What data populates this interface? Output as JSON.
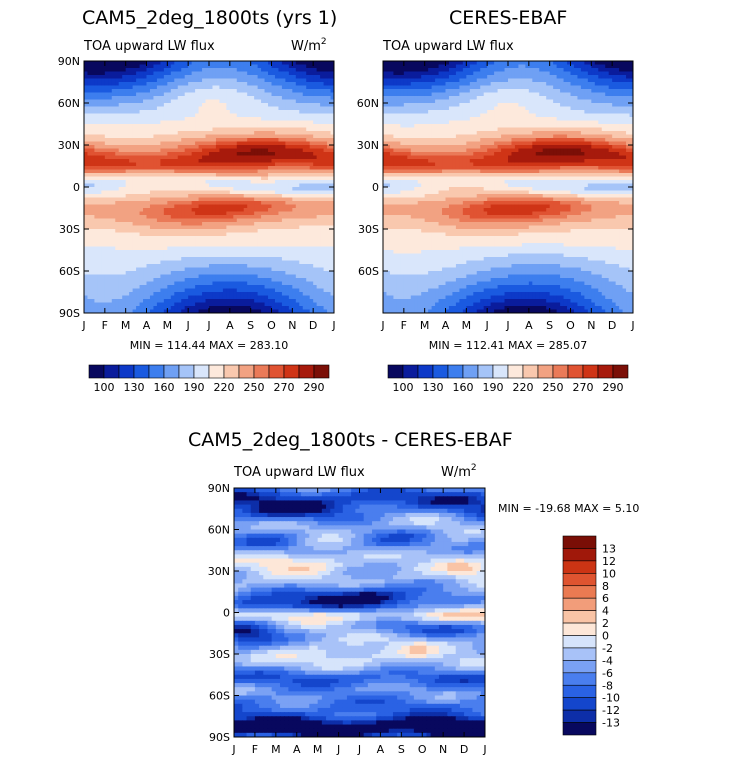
{
  "chart_data": [
    {
      "type": "heatmap",
      "title": "CAM5_2deg_1800ts (yrs 1)",
      "subtitle": "TOA upward LW flux",
      "units": "W/m",
      "units_sup": "2",
      "stats": "MIN = 114.44 MAX = 283.10",
      "x_ticks": [
        "J",
        "F",
        "M",
        "A",
        "M",
        "J",
        "J",
        "A",
        "S",
        "O",
        "N",
        "D",
        "J"
      ],
      "y_ticks": [
        "90N",
        "60N",
        "30N",
        "0",
        "30S",
        "60S",
        "90S"
      ],
      "ylim": [
        -90,
        90
      ],
      "colorbar_labels": [
        "100",
        "130",
        "160",
        "190",
        "220",
        "250",
        "270",
        "290"
      ]
    },
    {
      "type": "heatmap",
      "title": "CERES-EBAF",
      "subtitle": "TOA upward LW flux",
      "units": "W/m",
      "units_sup": "2",
      "stats": "MIN = 112.41 MAX = 285.07",
      "x_ticks": [
        "J",
        "F",
        "M",
        "A",
        "M",
        "J",
        "J",
        "A",
        "S",
        "O",
        "N",
        "D",
        "J"
      ],
      "y_ticks": [
        "60N",
        "30N",
        "0",
        "30S",
        "60S"
      ],
      "ylim": [
        -90,
        90
      ],
      "colorbar_labels": [
        "100",
        "130",
        "160",
        "190",
        "220",
        "250",
        "270",
        "290"
      ]
    },
    {
      "type": "heatmap",
      "title": "CAM5_2deg_1800ts - CERES-EBAF",
      "subtitle": "TOA upward LW flux",
      "units": "W/m",
      "units_sup": "2",
      "stats": "MIN = -19.68 MAX =   5.10",
      "x_ticks": [
        "J",
        "F",
        "M",
        "A",
        "M",
        "J",
        "J",
        "A",
        "S",
        "O",
        "N",
        "D",
        "J"
      ],
      "y_ticks": [
        "90N",
        "60N",
        "30N",
        "0",
        "30S",
        "60S",
        "90S"
      ],
      "ylim": [
        -90,
        90
      ],
      "colorbar_labels": [
        "13",
        "12",
        "10",
        "8",
        "6",
        "4",
        "2",
        "0",
        "-2",
        "-4",
        "-6",
        "-8",
        "-10",
        "-12",
        "-13"
      ]
    }
  ],
  "colors": {
    "scale": [
      "#08085e",
      "#0a1c9c",
      "#0d39c8",
      "#1a5ae0",
      "#3d7eee",
      "#6fa0f4",
      "#a5c4f8",
      "#d9e6fb",
      "#fde9dc",
      "#f9c8ae",
      "#f2a282",
      "#ea7a58",
      "#e05332",
      "#cf3416",
      "#a71a0c",
      "#7b0f07"
    ],
    "diff": [
      "#08085e",
      "#0d2ea8",
      "#1446cc",
      "#2a62e4",
      "#4a7eee",
      "#7aa1f4",
      "#a8c2f8",
      "#d6e4fb",
      "#fde7d8",
      "#f9c4a6",
      "#f29d7a",
      "#ea7a52",
      "#df5430",
      "#cc3414",
      "#a0180a",
      "#7a0e06"
    ]
  }
}
